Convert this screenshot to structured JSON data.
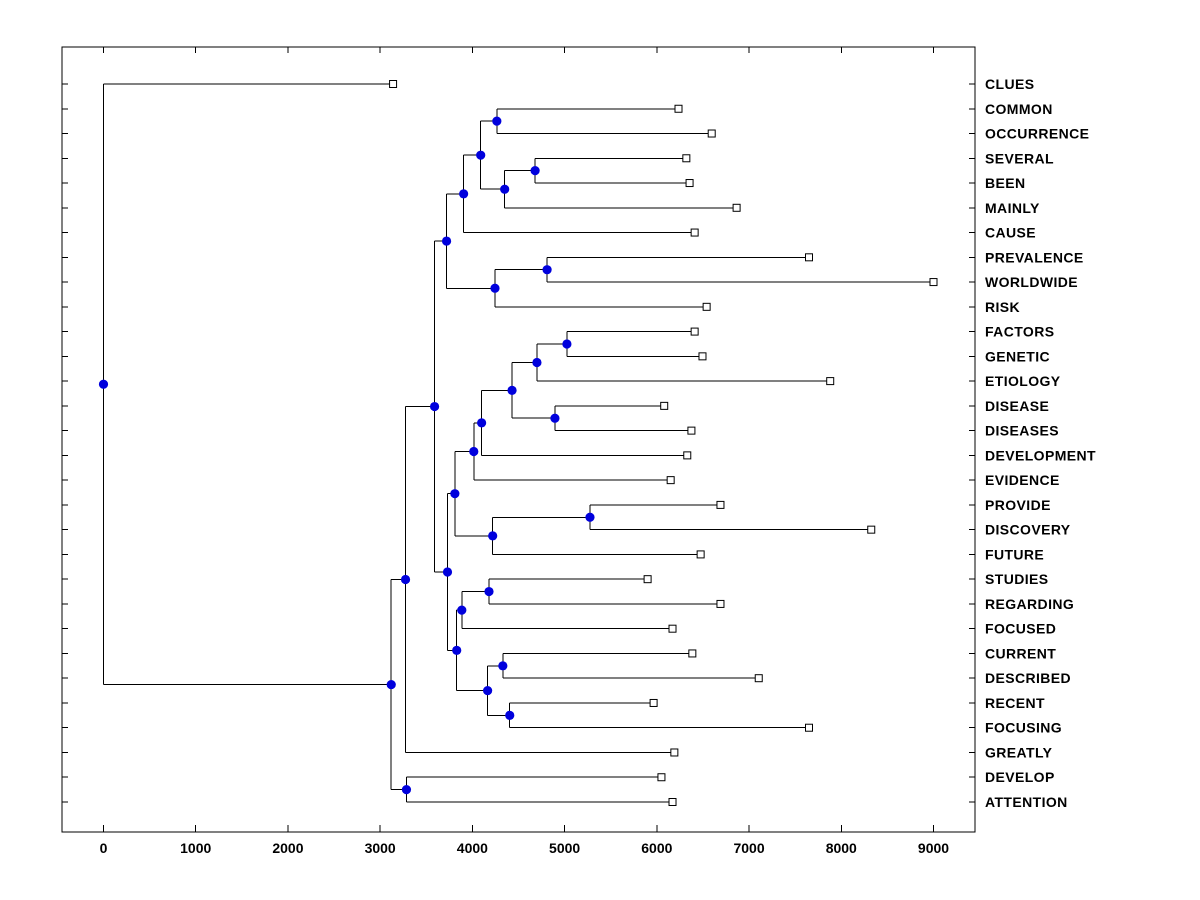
{
  "figure": {
    "background": "#ffffff",
    "border_color": "#000000"
  },
  "chart_data": {
    "type": "dendrogram",
    "orientation": "horizontal, root at left",
    "title": "",
    "xlabel": "",
    "ylabel": "",
    "grid": false,
    "legend": null,
    "xlim": [
      -450,
      9450
    ],
    "x_ticks": [
      0,
      1000,
      2000,
      3000,
      4000,
      5000,
      6000,
      7000,
      8000,
      9000
    ],
    "colors": {
      "branch": "#000000",
      "internal_node": "#0000dd",
      "leaf_marker_fill": "#ffffff",
      "leaf_marker_edge": "#000000",
      "text": "#000000"
    },
    "leaf_labels": [
      "CLUES",
      "COMMON",
      "OCCURRENCE",
      "SEVERAL",
      "BEEN",
      "MAINLY",
      "CAUSE",
      "PREVALENCE",
      "WORLDWIDE",
      "RISK",
      "FACTORS",
      "GENETIC",
      "ETIOLOGY",
      "DISEASE",
      "DISEASES",
      "DEVELOPMENT",
      "EVIDENCE",
      "PROVIDE",
      "DISCOVERY",
      "FUTURE",
      "STUDIES",
      "REGARDING",
      "FOCUSED",
      "CURRENT",
      "DESCRIBED",
      "RECENT",
      "FOCUSING",
      "GREATLY",
      "DEVELOP",
      "ATTENTION"
    ],
    "tree": {
      "x": 0,
      "children": [
        {
          "label": "CLUES",
          "x": 3140
        },
        {
          "x": 3120,
          "children": [
            {
              "x": 3275,
              "children": [
                {
                  "x": 3590,
                  "children": [
                    {
                      "x": 3720,
                      "children": [
                        {
                          "x": 3905,
                          "children": [
                            {
                              "x": 4090,
                              "children": [
                                {
                                  "x": 4265,
                                  "children": [
                                    {
                                      "label": "COMMON",
                                      "x": 6235
                                    },
                                    {
                                      "label": "OCCURRENCE",
                                      "x": 6595
                                    }
                                  ]
                                },
                                {
                                  "x": 4350,
                                  "children": [
                                    {
                                      "x": 4680,
                                      "children": [
                                        {
                                          "label": "SEVERAL",
                                          "x": 6320
                                        },
                                        {
                                          "label": "BEEN",
                                          "x": 6355
                                        }
                                      ]
                                    },
                                    {
                                      "label": "MAINLY",
                                      "x": 6865
                                    }
                                  ]
                                }
                              ]
                            },
                            {
                              "label": "CAUSE",
                              "x": 6410
                            }
                          ]
                        },
                        {
                          "x": 4245,
                          "children": [
                            {
                              "x": 4810,
                              "children": [
                                {
                                  "label": "PREVALENCE",
                                  "x": 7650
                                },
                                {
                                  "label": "WORLDWIDE",
                                  "x": 9000
                                }
                              ]
                            },
                            {
                              "label": "RISK",
                              "x": 6540
                            }
                          ]
                        }
                      ]
                    },
                    {
                      "x": 3730,
                      "children": [
                        {
                          "x": 3810,
                          "children": [
                            {
                              "x": 4015,
                              "children": [
                                {
                                  "x": 4100,
                                  "children": [
                                    {
                                      "x": 4430,
                                      "children": [
                                        {
                                          "x": 4700,
                                          "children": [
                                            {
                                              "x": 5025,
                                              "children": [
                                                {
                                                  "label": "FACTORS",
                                                  "x": 6410
                                                },
                                                {
                                                  "label": "GENETIC",
                                                  "x": 6495
                                                }
                                              ]
                                            },
                                            {
                                              "label": "ETIOLOGY",
                                              "x": 7880
                                            }
                                          ]
                                        },
                                        {
                                          "x": 4895,
                                          "children": [
                                            {
                                              "label": "DISEASE",
                                              "x": 6080
                                            },
                                            {
                                              "label": "DISEASES",
                                              "x": 6375
                                            }
                                          ]
                                        }
                                      ]
                                    },
                                    {
                                      "label": "DEVELOPMENT",
                                      "x": 6330
                                    }
                                  ]
                                },
                                {
                                  "label": "EVIDENCE",
                                  "x": 6150
                                }
                              ]
                            },
                            {
                              "x": 4220,
                              "children": [
                                {
                                  "x": 5275,
                                  "children": [
                                    {
                                      "label": "PROVIDE",
                                      "x": 6690
                                    },
                                    {
                                      "label": "DISCOVERY",
                                      "x": 8325
                                    }
                                  ]
                                },
                                {
                                  "label": "FUTURE",
                                  "x": 6475
                                }
                              ]
                            }
                          ]
                        },
                        {
                          "x": 3830,
                          "children": [
                            {
                              "x": 3885,
                              "children": [
                                {
                                  "x": 4180,
                                  "children": [
                                    {
                                      "label": "STUDIES",
                                      "x": 5900
                                    },
                                    {
                                      "label": "REGARDING",
                                      "x": 6690
                                    }
                                  ]
                                },
                                {
                                  "label": "FOCUSED",
                                  "x": 6170
                                }
                              ]
                            },
                            {
                              "x": 4165,
                              "children": [
                                {
                                  "x": 4330,
                                  "children": [
                                    {
                                      "label": "CURRENT",
                                      "x": 6385
                                    },
                                    {
                                      "label": "DESCRIBED",
                                      "x": 7105
                                    }
                                  ]
                                },
                                {
                                  "x": 4405,
                                  "children": [
                                    {
                                      "label": "RECENT",
                                      "x": 5965
                                    },
                                    {
                                      "label": "FOCUSING",
                                      "x": 7650
                                    }
                                  ]
                                }
                              ]
                            }
                          ]
                        }
                      ]
                    }
                  ]
                },
                {
                  "label": "GREATLY",
                  "x": 6190
                }
              ]
            },
            {
              "x": 3285,
              "children": [
                {
                  "label": "DEVELOP",
                  "x": 6050
                },
                {
                  "label": "ATTENTION",
                  "x": 6170
                }
              ]
            }
          ]
        }
      ]
    }
  }
}
